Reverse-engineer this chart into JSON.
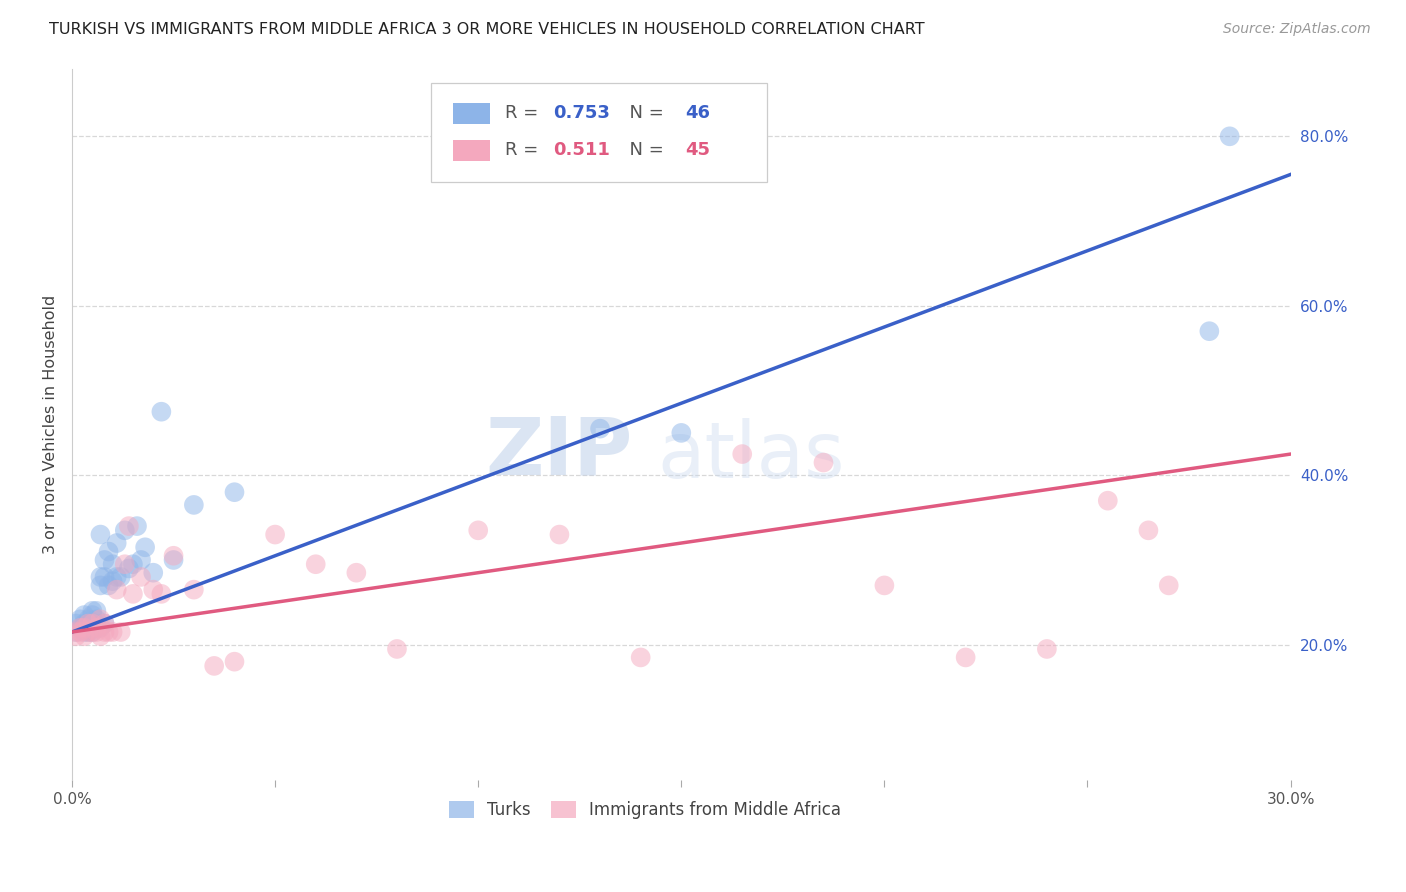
{
  "title": "TURKISH VS IMMIGRANTS FROM MIDDLE AFRICA 3 OR MORE VEHICLES IN HOUSEHOLD CORRELATION CHART",
  "source": "Source: ZipAtlas.com",
  "ylabel": "3 or more Vehicles in Household",
  "xlim": [
    0.0,
    0.3
  ],
  "ylim": [
    0.04,
    0.88
  ],
  "xticks": [
    0.0,
    0.05,
    0.1,
    0.15,
    0.2,
    0.25,
    0.3
  ],
  "xtick_labels": [
    "0.0%",
    "",
    "",
    "",
    "",
    "",
    "30.0%"
  ],
  "ytick_labels_right": [
    "20.0%",
    "40.0%",
    "60.0%",
    "80.0%"
  ],
  "ytick_vals_right": [
    0.2,
    0.4,
    0.6,
    0.8
  ],
  "blue_R": "0.753",
  "blue_N": "46",
  "pink_R": "0.511",
  "pink_N": "45",
  "legend_label_blue": "Turks",
  "legend_label_pink": "Immigrants from Middle Africa",
  "blue_color": "#8DB4E8",
  "pink_color": "#F4A8BE",
  "blue_line_color": "#3A60C8",
  "pink_line_color": "#E05A80",
  "watermark_zip": "ZIP",
  "watermark_atlas": "atlas",
  "background_color": "#ffffff",
  "grid_color": "#d8d8d8",
  "blue_line_x0": 0.0,
  "blue_line_y0": 0.215,
  "blue_line_x1": 0.3,
  "blue_line_y1": 0.755,
  "pink_line_x0": 0.0,
  "pink_line_y0": 0.215,
  "pink_line_x1": 0.3,
  "pink_line_y1": 0.425,
  "blue_scatter_x": [
    0.001,
    0.001,
    0.002,
    0.002,
    0.003,
    0.003,
    0.003,
    0.004,
    0.004,
    0.004,
    0.005,
    0.005,
    0.005,
    0.005,
    0.006,
    0.006,
    0.006,
    0.007,
    0.007,
    0.007,
    0.007,
    0.008,
    0.008,
    0.008,
    0.009,
    0.009,
    0.01,
    0.01,
    0.011,
    0.011,
    0.012,
    0.013,
    0.014,
    0.015,
    0.016,
    0.017,
    0.018,
    0.02,
    0.022,
    0.025,
    0.03,
    0.04,
    0.13,
    0.15,
    0.28,
    0.285
  ],
  "blue_scatter_y": [
    0.215,
    0.225,
    0.22,
    0.23,
    0.215,
    0.225,
    0.235,
    0.215,
    0.22,
    0.23,
    0.215,
    0.225,
    0.235,
    0.24,
    0.225,
    0.23,
    0.24,
    0.22,
    0.27,
    0.28,
    0.33,
    0.225,
    0.28,
    0.3,
    0.27,
    0.31,
    0.275,
    0.295,
    0.28,
    0.32,
    0.28,
    0.335,
    0.29,
    0.295,
    0.34,
    0.3,
    0.315,
    0.285,
    0.475,
    0.3,
    0.365,
    0.38,
    0.455,
    0.45,
    0.57,
    0.8
  ],
  "pink_scatter_x": [
    0.001,
    0.001,
    0.002,
    0.002,
    0.003,
    0.003,
    0.004,
    0.004,
    0.005,
    0.005,
    0.006,
    0.006,
    0.007,
    0.007,
    0.008,
    0.008,
    0.009,
    0.01,
    0.011,
    0.012,
    0.013,
    0.014,
    0.015,
    0.017,
    0.02,
    0.022,
    0.025,
    0.03,
    0.035,
    0.04,
    0.05,
    0.06,
    0.07,
    0.08,
    0.1,
    0.12,
    0.14,
    0.165,
    0.185,
    0.2,
    0.22,
    0.24,
    0.255,
    0.265,
    0.27
  ],
  "pink_scatter_y": [
    0.21,
    0.215,
    0.215,
    0.22,
    0.21,
    0.22,
    0.215,
    0.225,
    0.215,
    0.225,
    0.215,
    0.22,
    0.21,
    0.23,
    0.215,
    0.225,
    0.215,
    0.215,
    0.265,
    0.215,
    0.295,
    0.34,
    0.26,
    0.28,
    0.265,
    0.26,
    0.305,
    0.265,
    0.175,
    0.18,
    0.33,
    0.295,
    0.285,
    0.195,
    0.335,
    0.33,
    0.185,
    0.425,
    0.415,
    0.27,
    0.185,
    0.195,
    0.37,
    0.335,
    0.27
  ]
}
